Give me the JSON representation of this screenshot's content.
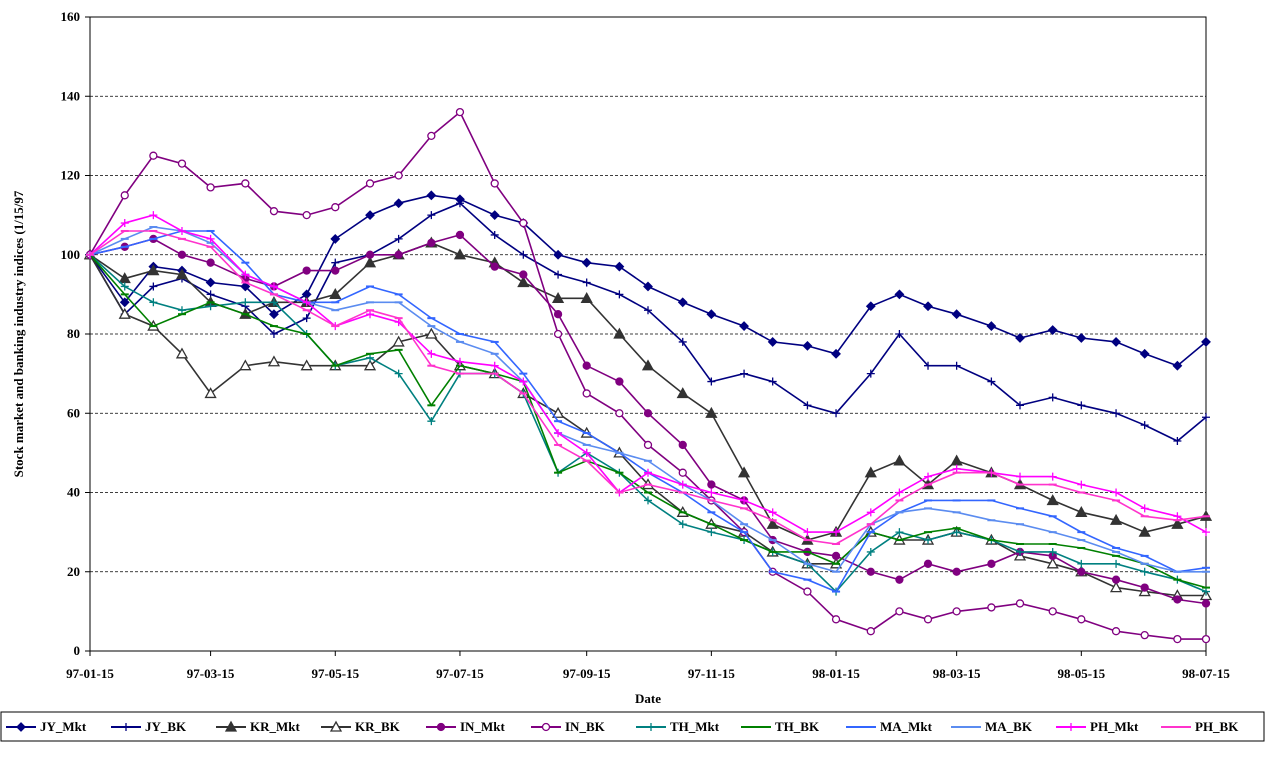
{
  "chart_data": {
    "type": "line",
    "y_label": "Stock market and banking industry indices (1/15/97",
    "x_label": "Date",
    "x": [
      "97-01-15",
      "97-02-01",
      "97-02-15",
      "97-03-01",
      "97-03-15",
      "97-04-01",
      "97-04-15",
      "97-05-01",
      "97-05-15",
      "97-06-01",
      "97-06-15",
      "97-07-01",
      "97-07-15",
      "97-08-01",
      "97-08-15",
      "97-09-01",
      "97-09-15",
      "97-10-01",
      "97-10-15",
      "97-11-01",
      "97-11-15",
      "97-12-01",
      "97-12-15",
      "98-01-01",
      "98-01-15",
      "98-02-01",
      "98-02-15",
      "98-03-01",
      "98-03-15",
      "98-04-01",
      "98-04-15",
      "98-05-01",
      "98-05-15",
      "98-06-01",
      "98-06-15",
      "98-07-01",
      "98-07-15"
    ],
    "xlim": [
      "97-01-15",
      "98-07-15"
    ],
    "xticks": [
      "97-01-15",
      "97-03-15",
      "97-05-15",
      "97-07-15",
      "97-09-15",
      "97-11-15",
      "98-01-15",
      "98-03-15",
      "98-05-15",
      "98-07-15"
    ],
    "ylim": [
      0,
      160
    ],
    "yticks": [
      0,
      20,
      40,
      60,
      80,
      100,
      120,
      140,
      160
    ],
    "grid": true,
    "legend": "bottom",
    "series": [
      {
        "name": "JY_Mkt",
        "color": "#000080",
        "marker": "diamond",
        "values": [
          100,
          88,
          97,
          96,
          93,
          92,
          85,
          90,
          104,
          110,
          113,
          115,
          114,
          110,
          108,
          100,
          98,
          97,
          92,
          88,
          85,
          82,
          78,
          77,
          75,
          87,
          90,
          87,
          85,
          82,
          79,
          81,
          79,
          78,
          75,
          72,
          78
        ]
      },
      {
        "name": "JY_BK",
        "color": "#000080",
        "marker": "plus",
        "values": [
          100,
          85,
          92,
          94,
          90,
          87,
          80,
          84,
          98,
          100,
          104,
          110,
          113,
          105,
          100,
          95,
          93,
          90,
          86,
          78,
          68,
          70,
          68,
          62,
          60,
          70,
          80,
          72,
          72,
          68,
          62,
          64,
          62,
          60,
          57,
          53,
          59
        ]
      },
      {
        "name": "KR_Mkt",
        "color": "#333333",
        "marker": "triangle",
        "values": [
          100,
          94,
          96,
          95,
          88,
          85,
          88,
          88,
          90,
          98,
          100,
          103,
          100,
          98,
          93,
          89,
          89,
          80,
          72,
          65,
          60,
          45,
          32,
          28,
          30,
          45,
          48,
          42,
          48,
          45,
          42,
          38,
          35,
          33,
          30,
          32,
          34
        ]
      },
      {
        "name": "KR_BK",
        "color": "#333333",
        "marker": "triangle-open",
        "values": [
          100,
          85,
          82,
          75,
          65,
          72,
          73,
          72,
          72,
          72,
          78,
          80,
          72,
          70,
          65,
          60,
          55,
          50,
          42,
          35,
          32,
          30,
          25,
          22,
          22,
          30,
          28,
          28,
          30,
          28,
          24,
          22,
          20,
          16,
          15,
          14,
          14
        ]
      },
      {
        "name": "IN_Mkt",
        "color": "#800080",
        "marker": "circle",
        "values": [
          100,
          102,
          104,
          100,
          98,
          94,
          92,
          96,
          96,
          100,
          100,
          103,
          105,
          97,
          95,
          85,
          72,
          68,
          60,
          52,
          42,
          38,
          28,
          25,
          24,
          20,
          18,
          22,
          20,
          22,
          25,
          24,
          20,
          18,
          16,
          13,
          12
        ]
      },
      {
        "name": "IN_BK",
        "color": "#800080",
        "marker": "circle-open",
        "values": [
          100,
          115,
          125,
          123,
          117,
          118,
          111,
          110,
          112,
          118,
          120,
          130,
          136,
          118,
          108,
          80,
          65,
          60,
          52,
          45,
          38,
          30,
          20,
          15,
          8,
          5,
          10,
          8,
          10,
          11,
          12,
          10,
          8,
          5,
          4,
          3,
          3
        ]
      },
      {
        "name": "TH_Mkt",
        "color": "#008080",
        "marker": "plus",
        "values": [
          100,
          92,
          88,
          86,
          87,
          88,
          88,
          80,
          72,
          74,
          70,
          58,
          70,
          70,
          65,
          45,
          50,
          45,
          38,
          32,
          30,
          28,
          25,
          22,
          15,
          25,
          30,
          28,
          30,
          28,
          25,
          25,
          22,
          22,
          20,
          18,
          15
        ]
      },
      {
        "name": "TH_BK",
        "color": "#008000",
        "marker": "dash",
        "values": [
          100,
          90,
          82,
          85,
          88,
          85,
          82,
          80,
          72,
          75,
          76,
          62,
          72,
          70,
          68,
          45,
          48,
          45,
          40,
          35,
          32,
          28,
          25,
          25,
          22,
          30,
          28,
          30,
          31,
          28,
          27,
          27,
          26,
          24,
          22,
          18,
          16
        ]
      },
      {
        "name": "MA_Mkt",
        "color": "#3366ff",
        "marker": "dash",
        "values": [
          100,
          102,
          104,
          106,
          106,
          98,
          90,
          88,
          88,
          92,
          90,
          84,
          80,
          78,
          70,
          58,
          55,
          50,
          45,
          40,
          35,
          30,
          20,
          18,
          15,
          30,
          35,
          38,
          38,
          38,
          36,
          34,
          30,
          26,
          24,
          20,
          21
        ]
      },
      {
        "name": "MA_BK",
        "color": "#5b8cf0",
        "marker": "dash",
        "values": [
          100,
          104,
          107,
          106,
          103,
          95,
          92,
          88,
          86,
          88,
          88,
          82,
          78,
          75,
          68,
          55,
          52,
          50,
          48,
          42,
          38,
          32,
          28,
          22,
          20,
          32,
          35,
          36,
          35,
          33,
          32,
          30,
          28,
          25,
          22,
          20,
          20
        ]
      },
      {
        "name": "PH_Mkt",
        "color": "#ff00ff",
        "marker": "plus",
        "values": [
          100,
          108,
          110,
          106,
          104,
          95,
          92,
          88,
          82,
          85,
          83,
          75,
          73,
          72,
          68,
          55,
          50,
          40,
          45,
          42,
          40,
          38,
          35,
          30,
          30,
          35,
          40,
          44,
          46,
          45,
          44,
          44,
          42,
          40,
          36,
          34,
          30
        ]
      },
      {
        "name": "PH_BK",
        "color": "#ff33cc",
        "marker": "dash",
        "values": [
          100,
          106,
          106,
          104,
          102,
          93,
          90,
          86,
          82,
          86,
          84,
          72,
          70,
          70,
          65,
          52,
          48,
          40,
          42,
          40,
          38,
          36,
          33,
          28,
          27,
          32,
          38,
          42,
          45,
          45,
          42,
          42,
          40,
          38,
          34,
          33,
          34
        ]
      }
    ]
  }
}
